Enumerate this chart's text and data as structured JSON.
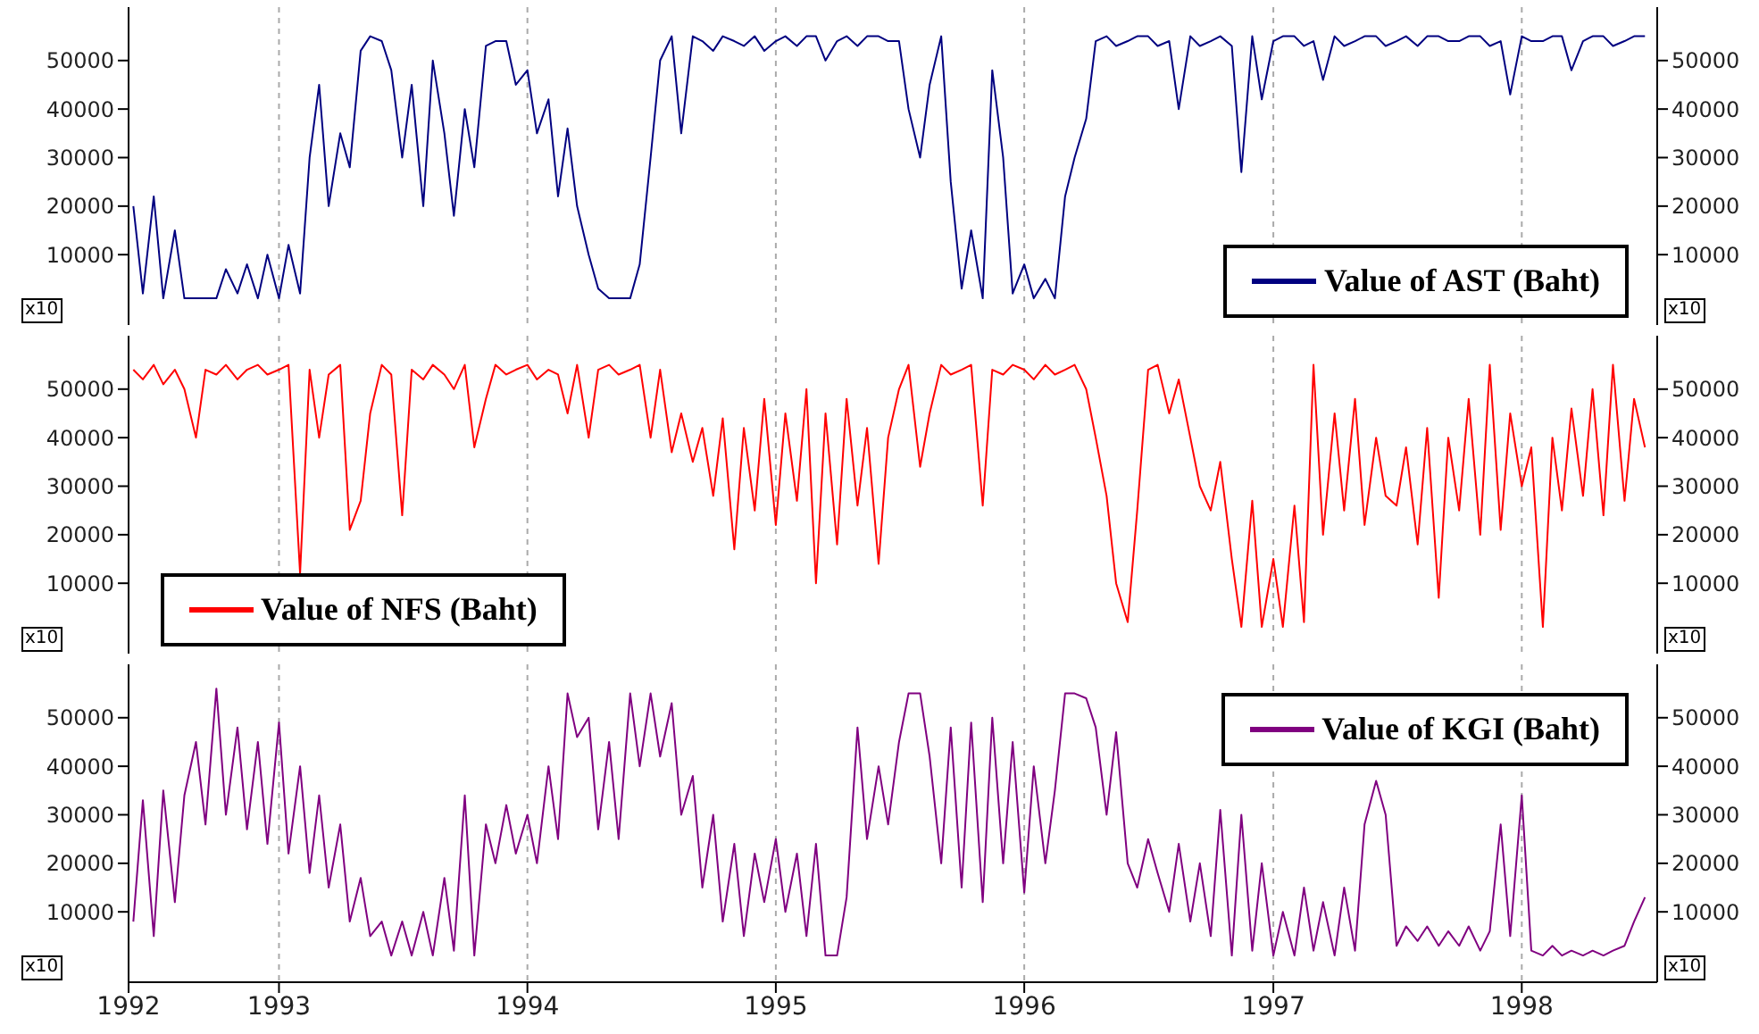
{
  "chart_data": [
    {
      "type": "line",
      "x": [
        "1992-06-01",
        "1992-06-15",
        "1992-07-01",
        "1992-07-15",
        "1992-08-01",
        "1992-08-15",
        "1992-09-01",
        "1992-09-15",
        "1992-10-01",
        "1992-10-15",
        "1992-11-01",
        "1992-11-15",
        "1992-12-01",
        "1992-12-15",
        "1993-01-01",
        "1993-01-15",
        "1993-02-01",
        "1993-02-15",
        "1993-03-01",
        "1993-03-15",
        "1993-04-01",
        "1993-04-15",
        "1993-05-01",
        "1993-05-15",
        "1993-06-01",
        "1993-06-15",
        "1993-07-01",
        "1993-07-15",
        "1993-08-01",
        "1993-08-15",
        "1993-09-01",
        "1993-09-15",
        "1993-10-01",
        "1993-10-15",
        "1993-11-01",
        "1993-11-15",
        "1993-12-01",
        "1993-12-15",
        "1994-01-01",
        "1994-01-15",
        "1994-02-01",
        "1994-02-15",
        "1994-03-01",
        "1994-03-15",
        "1994-04-01",
        "1994-04-15",
        "1994-05-01",
        "1994-05-15",
        "1994-06-01",
        "1994-06-15",
        "1994-07-01",
        "1994-07-15",
        "1994-08-01",
        "1994-08-15",
        "1994-09-01",
        "1994-09-15",
        "1994-10-01",
        "1994-10-15",
        "1994-11-01",
        "1994-11-15",
        "1994-12-01",
        "1994-12-15",
        "1995-01-01",
        "1995-01-15",
        "1995-02-01",
        "1995-02-15",
        "1995-03-01",
        "1995-03-15",
        "1995-04-01",
        "1995-04-15",
        "1995-05-01",
        "1995-05-15",
        "1995-06-01",
        "1995-06-15",
        "1995-07-01",
        "1995-07-15",
        "1995-08-01",
        "1995-08-15",
        "1995-09-01",
        "1995-09-15",
        "1995-10-01",
        "1995-10-15",
        "1995-11-01",
        "1995-11-15",
        "1995-12-01",
        "1995-12-15",
        "1996-01-01",
        "1996-01-15",
        "1996-02-01",
        "1996-02-15",
        "1996-03-01",
        "1996-03-15",
        "1996-04-01",
        "1996-04-15",
        "1996-05-01",
        "1996-05-15",
        "1996-06-01",
        "1996-06-15",
        "1996-07-01",
        "1996-07-15",
        "1996-08-01",
        "1996-08-15",
        "1996-09-01",
        "1996-09-15",
        "1996-10-01",
        "1996-10-15",
        "1996-11-01",
        "1996-11-15",
        "1996-12-01",
        "1996-12-15",
        "1997-01-01",
        "1997-01-15",
        "1997-02-01",
        "1997-02-15",
        "1997-03-01",
        "1997-03-15",
        "1997-04-01",
        "1997-04-15",
        "1997-05-01",
        "1997-05-15",
        "1997-06-01",
        "1997-06-15",
        "1997-07-01",
        "1997-07-15",
        "1997-08-01",
        "1997-08-15",
        "1997-09-01",
        "1997-09-15",
        "1997-10-01",
        "1997-10-15",
        "1997-11-01",
        "1997-11-15",
        "1997-12-01",
        "1997-12-15",
        "1998-01-01",
        "1998-01-15",
        "1998-02-01",
        "1998-02-15",
        "1998-03-01",
        "1998-03-15",
        "1998-04-01",
        "1998-04-15",
        "1998-05-01",
        "1998-05-15",
        "1998-06-01",
        "1998-06-15",
        "1998-07-01"
      ],
      "series": [
        {
          "name": "Value of AST (Baht)",
          "color": "#000080",
          "values": [
            20000,
            2000,
            22000,
            1000,
            15000,
            1000,
            1000,
            1000,
            1000,
            7000,
            2000,
            8000,
            1000,
            10000,
            1000,
            12000,
            2000,
            30000,
            45000,
            20000,
            35000,
            28000,
            52000,
            55000,
            54000,
            48000,
            30000,
            45000,
            20000,
            50000,
            35000,
            18000,
            40000,
            28000,
            53000,
            54000,
            54000,
            45000,
            48000,
            35000,
            42000,
            22000,
            36000,
            20000,
            10000,
            3000,
            1000,
            1000,
            1000,
            8000,
            30000,
            50000,
            55000,
            35000,
            55000,
            54000,
            52000,
            55000,
            54000,
            53000,
            55000,
            52000,
            54000,
            55000,
            53000,
            55000,
            55000,
            50000,
            54000,
            55000,
            53000,
            55000,
            55000,
            54000,
            54000,
            40000,
            30000,
            45000,
            55000,
            25000,
            3000,
            15000,
            1000,
            48000,
            30000,
            2000,
            8000,
            1000,
            5000,
            1000,
            22000,
            30000,
            38000,
            54000,
            55000,
            53000,
            54000,
            55000,
            55000,
            53000,
            54000,
            40000,
            55000,
            53000,
            54000,
            55000,
            53000,
            27000,
            55000,
            42000,
            54000,
            55000,
            55000,
            53000,
            54000,
            46000,
            55000,
            53000,
            54000,
            55000,
            55000,
            53000,
            54000,
            55000,
            53000,
            55000,
            55000,
            54000,
            54000,
            55000,
            55000,
            53000,
            54000,
            43000,
            55000,
            54000,
            54000,
            55000,
            55000,
            48000,
            54000,
            55000,
            55000,
            53000,
            54000,
            55000,
            55000
          ]
        }
      ],
      "xlim": [
        "1992-05-25",
        "1998-07-19"
      ],
      "xticks": [
        {
          "value": "1993",
          "label": null
        },
        {
          "value": "1994",
          "label": null
        },
        {
          "value": "1995",
          "label": null
        },
        {
          "value": "1996",
          "label": null
        },
        {
          "value": "1997",
          "label": null
        },
        {
          "value": "1998",
          "label": null
        }
      ],
      "ylim": [
        -4500,
        61000
      ],
      "yticks": [
        10000,
        20000,
        30000,
        40000,
        50000
      ],
      "y2lim": [
        -4500,
        61000
      ],
      "y2ticks": [
        10000,
        20000,
        30000,
        40000,
        50000
      ],
      "grid": "x",
      "legend": "bottom right",
      "tick_labels": "y",
      "annotations": [
        "x10",
        "x10"
      ]
    },
    {
      "type": "line",
      "x": [
        "1992-06-01",
        "1992-06-15",
        "1992-07-01",
        "1992-07-15",
        "1992-08-01",
        "1992-08-15",
        "1992-09-01",
        "1992-09-15",
        "1992-10-01",
        "1992-10-15",
        "1992-11-01",
        "1992-11-15",
        "1992-12-01",
        "1992-12-15",
        "1993-01-01",
        "1993-01-15",
        "1993-02-01",
        "1993-02-15",
        "1993-03-01",
        "1993-03-15",
        "1993-04-01",
        "1993-04-15",
        "1993-05-01",
        "1993-05-15",
        "1993-06-01",
        "1993-06-15",
        "1993-07-01",
        "1993-07-15",
        "1993-08-01",
        "1993-08-15",
        "1993-09-01",
        "1993-09-15",
        "1993-10-01",
        "1993-10-15",
        "1993-11-01",
        "1993-11-15",
        "1993-12-01",
        "1993-12-15",
        "1994-01-01",
        "1994-01-15",
        "1994-02-01",
        "1994-02-15",
        "1994-03-01",
        "1994-03-15",
        "1994-04-01",
        "1994-04-15",
        "1994-05-01",
        "1994-05-15",
        "1994-06-01",
        "1994-06-15",
        "1994-07-01",
        "1994-07-15",
        "1994-08-01",
        "1994-08-15",
        "1994-09-01",
        "1994-09-15",
        "1994-10-01",
        "1994-10-15",
        "1994-11-01",
        "1994-11-15",
        "1994-12-01",
        "1994-12-15",
        "1995-01-01",
        "1995-01-15",
        "1995-02-01",
        "1995-02-15",
        "1995-03-01",
        "1995-03-15",
        "1995-04-01",
        "1995-04-15",
        "1995-05-01",
        "1995-05-15",
        "1995-06-01",
        "1995-06-15",
        "1995-07-01",
        "1995-07-15",
        "1995-08-01",
        "1995-08-15",
        "1995-09-01",
        "1995-09-15",
        "1995-10-01",
        "1995-10-15",
        "1995-11-01",
        "1995-11-15",
        "1995-12-01",
        "1995-12-15",
        "1996-01-01",
        "1996-01-15",
        "1996-02-01",
        "1996-02-15",
        "1996-03-01",
        "1996-03-15",
        "1996-04-01",
        "1996-04-15",
        "1996-05-01",
        "1996-05-15",
        "1996-06-01",
        "1996-06-15",
        "1996-07-01",
        "1996-07-15",
        "1996-08-01",
        "1996-08-15",
        "1996-09-01",
        "1996-09-15",
        "1996-10-01",
        "1996-10-15",
        "1996-11-01",
        "1996-11-15",
        "1996-12-01",
        "1996-12-15",
        "1997-01-01",
        "1997-01-15",
        "1997-02-01",
        "1997-02-15",
        "1997-03-01",
        "1997-03-15",
        "1997-04-01",
        "1997-04-15",
        "1997-05-01",
        "1997-05-15",
        "1997-06-01",
        "1997-06-15",
        "1997-07-01",
        "1997-07-15",
        "1997-08-01",
        "1997-08-15",
        "1997-09-01",
        "1997-09-15",
        "1997-10-01",
        "1997-10-15",
        "1997-11-01",
        "1997-11-15",
        "1997-12-01",
        "1997-12-15",
        "1998-01-01",
        "1998-01-15",
        "1998-02-01",
        "1998-02-15",
        "1998-03-01",
        "1998-03-15",
        "1998-04-01",
        "1998-04-15",
        "1998-05-01",
        "1998-05-15",
        "1998-06-01",
        "1998-06-15",
        "1998-07-01"
      ],
      "series": [
        {
          "name": "Value of NFS (Baht)",
          "color": "#ff0000",
          "values": [
            54000,
            52000,
            55000,
            51000,
            54000,
            50000,
            40000,
            54000,
            53000,
            55000,
            52000,
            54000,
            55000,
            53000,
            54000,
            55000,
            12000,
            54000,
            40000,
            53000,
            55000,
            21000,
            27000,
            45000,
            55000,
            53000,
            24000,
            54000,
            52000,
            55000,
            53000,
            50000,
            55000,
            38000,
            48000,
            55000,
            53000,
            54000,
            55000,
            52000,
            54000,
            53000,
            45000,
            55000,
            40000,
            54000,
            55000,
            53000,
            54000,
            55000,
            40000,
            54000,
            37000,
            45000,
            35000,
            42000,
            28000,
            44000,
            17000,
            42000,
            25000,
            48000,
            22000,
            45000,
            27000,
            50000,
            10000,
            45000,
            18000,
            48000,
            26000,
            42000,
            14000,
            40000,
            50000,
            55000,
            34000,
            45000,
            55000,
            53000,
            54000,
            55000,
            26000,
            54000,
            53000,
            55000,
            54000,
            52000,
            55000,
            53000,
            54000,
            55000,
            50000,
            40000,
            28000,
            10000,
            2000,
            25000,
            54000,
            55000,
            45000,
            52000,
            40000,
            30000,
            25000,
            35000,
            15000,
            1000,
            27000,
            1000,
            15000,
            1000,
            26000,
            2000,
            55000,
            20000,
            45000,
            25000,
            48000,
            22000,
            40000,
            28000,
            26000,
            38000,
            18000,
            42000,
            7000,
            40000,
            25000,
            48000,
            20000,
            55000,
            21000,
            45000,
            30000,
            38000,
            1000,
            40000,
            25000,
            46000,
            28000,
            50000,
            24000,
            55000,
            27000,
            48000,
            38000
          ]
        }
      ],
      "xlim": [
        "1992-05-25",
        "1998-07-19"
      ],
      "xticks": [
        {
          "value": "1993",
          "label": null
        },
        {
          "value": "1994",
          "label": null
        },
        {
          "value": "1995",
          "label": null
        },
        {
          "value": "1996",
          "label": null
        },
        {
          "value": "1997",
          "label": null
        },
        {
          "value": "1998",
          "label": null
        }
      ],
      "ylim": [
        -4500,
        61000
      ],
      "yticks": [
        10000,
        20000,
        30000,
        40000,
        50000
      ],
      "y2lim": [
        -4500,
        61000
      ],
      "y2ticks": [
        10000,
        20000,
        30000,
        40000,
        50000
      ],
      "grid": "x",
      "legend": "bottom left",
      "tick_labels": "y",
      "annotations": [
        "x10",
        "x10"
      ]
    },
    {
      "type": "line",
      "x": [
        "1992-06-01",
        "1992-06-15",
        "1992-07-01",
        "1992-07-15",
        "1992-08-01",
        "1992-08-15",
        "1992-09-01",
        "1992-09-15",
        "1992-10-01",
        "1992-10-15",
        "1992-11-01",
        "1992-11-15",
        "1992-12-01",
        "1992-12-15",
        "1993-01-01",
        "1993-01-15",
        "1993-02-01",
        "1993-02-15",
        "1993-03-01",
        "1993-03-15",
        "1993-04-01",
        "1993-04-15",
        "1993-05-01",
        "1993-05-15",
        "1993-06-01",
        "1993-06-15",
        "1993-07-01",
        "1993-07-15",
        "1993-08-01",
        "1993-08-15",
        "1993-09-01",
        "1993-09-15",
        "1993-10-01",
        "1993-10-15",
        "1993-11-01",
        "1993-11-15",
        "1993-12-01",
        "1993-12-15",
        "1994-01-01",
        "1994-01-15",
        "1994-02-01",
        "1994-02-15",
        "1994-03-01",
        "1994-03-15",
        "1994-04-01",
        "1994-04-15",
        "1994-05-01",
        "1994-05-15",
        "1994-06-01",
        "1994-06-15",
        "1994-07-01",
        "1994-07-15",
        "1994-08-01",
        "1994-08-15",
        "1994-09-01",
        "1994-09-15",
        "1994-10-01",
        "1994-10-15",
        "1994-11-01",
        "1994-11-15",
        "1994-12-01",
        "1994-12-15",
        "1995-01-01",
        "1995-01-15",
        "1995-02-01",
        "1995-02-15",
        "1995-03-01",
        "1995-03-15",
        "1995-04-01",
        "1995-04-15",
        "1995-05-01",
        "1995-05-15",
        "1995-06-01",
        "1995-06-15",
        "1995-07-01",
        "1995-07-15",
        "1995-08-01",
        "1995-08-15",
        "1995-09-01",
        "1995-09-15",
        "1995-10-01",
        "1995-10-15",
        "1995-11-01",
        "1995-11-15",
        "1995-12-01",
        "1995-12-15",
        "1996-01-01",
        "1996-01-15",
        "1996-02-01",
        "1996-02-15",
        "1996-03-01",
        "1996-03-15",
        "1996-04-01",
        "1996-04-15",
        "1996-05-01",
        "1996-05-15",
        "1996-06-01",
        "1996-06-15",
        "1996-07-01",
        "1996-07-15",
        "1996-08-01",
        "1996-08-15",
        "1996-09-01",
        "1996-09-15",
        "1996-10-01",
        "1996-10-15",
        "1996-11-01",
        "1996-11-15",
        "1996-12-01",
        "1996-12-15",
        "1997-01-01",
        "1997-01-15",
        "1997-02-01",
        "1997-02-15",
        "1997-03-01",
        "1997-03-15",
        "1997-04-01",
        "1997-04-15",
        "1997-05-01",
        "1997-05-15",
        "1997-06-01",
        "1997-06-15",
        "1997-07-01",
        "1997-07-15",
        "1997-08-01",
        "1997-08-15",
        "1997-09-01",
        "1997-09-15",
        "1997-10-01",
        "1997-10-15",
        "1997-11-01",
        "1997-11-15",
        "1997-12-01",
        "1997-12-15",
        "1998-01-01",
        "1998-01-15",
        "1998-02-01",
        "1998-02-15",
        "1998-03-01",
        "1998-03-15",
        "1998-04-01",
        "1998-04-15",
        "1998-05-01",
        "1998-05-15",
        "1998-06-01",
        "1998-06-15",
        "1998-07-01"
      ],
      "series": [
        {
          "name": "Value of KGI (Baht)",
          "color": "#800080",
          "values": [
            8000,
            33000,
            5000,
            35000,
            12000,
            34000,
            45000,
            28000,
            56000,
            30000,
            48000,
            27000,
            45000,
            24000,
            49000,
            22000,
            40000,
            18000,
            34000,
            15000,
            28000,
            8000,
            17000,
            5000,
            8000,
            1000,
            8000,
            1000,
            10000,
            1000,
            17000,
            2000,
            34000,
            1000,
            28000,
            20000,
            32000,
            22000,
            30000,
            20000,
            40000,
            25000,
            55000,
            46000,
            50000,
            27000,
            45000,
            25000,
            55000,
            40000,
            55000,
            42000,
            53000,
            30000,
            38000,
            15000,
            30000,
            8000,
            24000,
            5000,
            22000,
            12000,
            25000,
            10000,
            22000,
            5000,
            24000,
            1000,
            1000,
            13000,
            48000,
            25000,
            40000,
            28000,
            45000,
            55000,
            55000,
            42000,
            20000,
            48000,
            15000,
            49000,
            12000,
            50000,
            20000,
            45000,
            14000,
            40000,
            20000,
            35000,
            55000,
            55000,
            54000,
            48000,
            30000,
            47000,
            20000,
            15000,
            25000,
            18000,
            10000,
            24000,
            8000,
            20000,
            5000,
            31000,
            1000,
            30000,
            2000,
            20000,
            1000,
            10000,
            1000,
            15000,
            2000,
            12000,
            1000,
            15000,
            2000,
            28000,
            37000,
            30000,
            3000,
            7000,
            4000,
            7000,
            3000,
            6000,
            3000,
            7000,
            2000,
            6000,
            28000,
            5000,
            34000,
            2000,
            1000,
            3000,
            1000,
            2000,
            1000,
            2000,
            1000,
            2000,
            3000,
            8000,
            13000
          ]
        }
      ],
      "xlim": [
        "1992-05-25",
        "1998-07-19"
      ],
      "xticks": [
        {
          "value": "1992-05-25",
          "label": "1992"
        },
        "1993",
        "1994",
        "1995",
        "1996",
        "1997",
        "1998"
      ],
      "ylim": [
        -4500,
        61000
      ],
      "yticks": [
        10000,
        20000,
        30000,
        40000,
        50000
      ],
      "y2lim": [
        -4500,
        61000
      ],
      "y2ticks": [
        10000,
        20000,
        30000,
        40000,
        50000
      ],
      "grid": "x",
      "legend": "top right",
      "annotations": [
        "x10",
        "x10"
      ]
    }
  ]
}
